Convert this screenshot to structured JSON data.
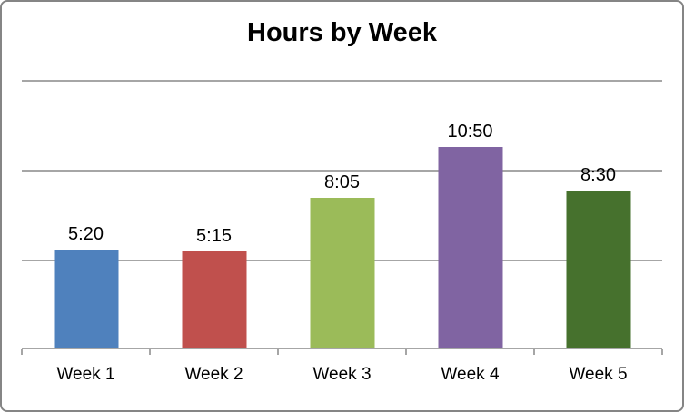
{
  "chart_data": {
    "type": "bar",
    "title": "Hours by Week",
    "categories": [
      "Week 1",
      "Week 2",
      "Week 3",
      "Week 4",
      "Week 5"
    ],
    "values": [
      "5:20",
      "5:15",
      "8:05",
      "10:50",
      "8:30"
    ],
    "values_hours": [
      5.33,
      5.25,
      8.08,
      10.83,
      8.5
    ],
    "data_labels_visible": true,
    "xlabel": "",
    "ylabel": "",
    "value_axis_labels_visible": false,
    "ylim": [
      0,
      14.4
    ],
    "gridline_interval_hours": 4.8,
    "gridlines": "horizontal",
    "legend_position": "none",
    "bar_colors": [
      "#4F81BD",
      "#C0504D",
      "#9BBB59",
      "#8064A2",
      "#46712D"
    ],
    "gridline_color": "#A6A6A6",
    "axis_color": "#A6A6A6",
    "frame_border_color": "#858585",
    "background_color": "#FFFFFF",
    "title_color": "#000000",
    "label_color": "#000000"
  }
}
